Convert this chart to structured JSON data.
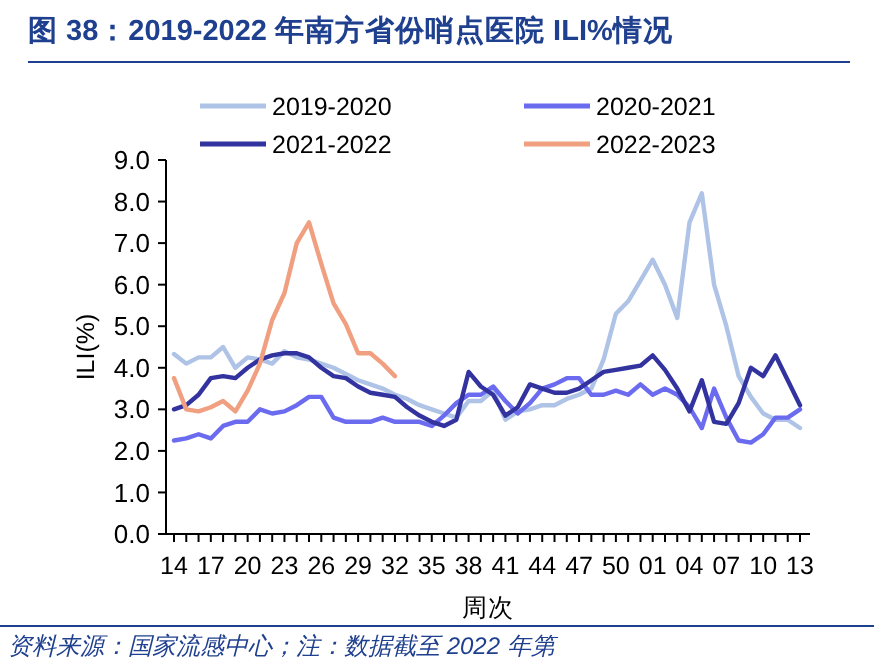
{
  "chart_data": {
    "type": "line",
    "title": "图 38：2019-2022 年南方省份哨点医院 ILI%情况",
    "xlabel": "周次",
    "ylabel": "ILI(%)",
    "annotations": [
      "资料来源：国家流感中心；注：数据截至 2022 年第"
    ],
    "categories": [
      "14",
      null,
      null,
      "17",
      null,
      null,
      "20",
      null,
      null,
      "23",
      null,
      null,
      "26",
      null,
      null,
      "29",
      null,
      null,
      "32",
      null,
      null,
      "35",
      null,
      null,
      "38",
      null,
      null,
      "41",
      null,
      null,
      "44",
      null,
      null,
      "47",
      null,
      null,
      "50",
      null,
      null,
      "01",
      null,
      null,
      "04",
      null,
      null,
      "07",
      null,
      null,
      "10",
      null,
      null,
      "13"
    ],
    "series": [
      {
        "name": "2019-2020",
        "color": "#aec3e6",
        "values": [
          4.33,
          4.1,
          4.25,
          4.25,
          4.5,
          4.0,
          4.25,
          4.2,
          4.1,
          4.4,
          4.25,
          4.2,
          4.1,
          4.0,
          3.85,
          3.7,
          3.6,
          3.5,
          3.35,
          3.25,
          3.1,
          3.0,
          2.9,
          2.8,
          3.2,
          3.2,
          3.45,
          2.75,
          2.95,
          3.0,
          3.1,
          3.1,
          3.25,
          3.35,
          3.5,
          4.2,
          5.3,
          5.6,
          6.1,
          6.6,
          6.0,
          5.2,
          7.5,
          8.2,
          6.0,
          5.0,
          3.8,
          3.3,
          2.9,
          2.75,
          2.75,
          2.55
        ]
      },
      {
        "name": "2020-2021",
        "color": "#6b6bf0",
        "values": [
          2.25,
          2.3,
          2.4,
          2.3,
          2.6,
          2.7,
          2.7,
          3.0,
          2.9,
          2.95,
          3.1,
          3.3,
          3.3,
          2.8,
          2.7,
          2.7,
          2.7,
          2.8,
          2.7,
          2.7,
          2.7,
          2.6,
          2.85,
          3.15,
          3.35,
          3.35,
          3.55,
          3.2,
          2.9,
          3.15,
          3.5,
          3.6,
          3.75,
          3.75,
          3.35,
          3.35,
          3.45,
          3.35,
          3.6,
          3.35,
          3.5,
          3.35,
          3.05,
          2.55,
          3.5,
          2.8,
          2.25,
          2.2,
          2.4,
          2.8,
          2.8,
          3.0
        ]
      },
      {
        "name": "2021-2022",
        "color": "#3333a0",
        "values": [
          3.0,
          3.1,
          3.35,
          3.75,
          3.8,
          3.75,
          4.0,
          4.2,
          4.3,
          4.35,
          4.35,
          4.25,
          4.0,
          3.8,
          3.75,
          3.55,
          3.4,
          3.35,
          3.3,
          3.05,
          2.85,
          2.7,
          2.6,
          2.75,
          3.9,
          3.55,
          3.35,
          2.85,
          3.05,
          3.6,
          3.5,
          3.4,
          3.4,
          3.5,
          3.7,
          3.9,
          3.95,
          4.0,
          4.05,
          4.3,
          3.95,
          3.5,
          2.95,
          3.7,
          2.7,
          2.65,
          3.15,
          4.0,
          3.8,
          4.3,
          3.7,
          3.1
        ]
      },
      {
        "name": "2022-2023",
        "color": "#f0a080",
        "values": [
          3.75,
          3.0,
          2.95,
          3.05,
          3.2,
          2.95,
          3.45,
          4.1,
          5.15,
          5.8,
          7.0,
          7.5,
          6.5,
          5.55,
          5.05,
          4.35,
          4.35,
          4.1,
          3.8,
          null,
          null,
          null,
          null,
          null,
          null,
          null,
          null,
          null,
          null,
          null,
          null,
          null,
          null,
          null,
          null,
          null,
          null,
          null,
          null,
          null,
          null,
          null,
          null,
          null,
          null,
          null,
          null,
          null,
          null,
          null,
          null,
          null
        ]
      }
    ],
    "ylim": [
      0,
      9
    ],
    "yticks": [
      {
        "value": 0,
        "label": "0.0"
      },
      {
        "value": 1,
        "label": "1.0"
      },
      {
        "value": 2,
        "label": "2.0"
      },
      {
        "value": 3,
        "label": "3.0"
      },
      {
        "value": 4,
        "label": "4.0"
      },
      {
        "value": 5,
        "label": "5.0"
      },
      {
        "value": 6,
        "label": "6.0"
      },
      {
        "value": 7,
        "label": "7.0"
      },
      {
        "value": 8,
        "label": "8.0"
      },
      {
        "value": 9,
        "label": "9.0"
      }
    ],
    "grid": false,
    "legend": "top",
    "marker": "none",
    "line_style": "solid"
  }
}
